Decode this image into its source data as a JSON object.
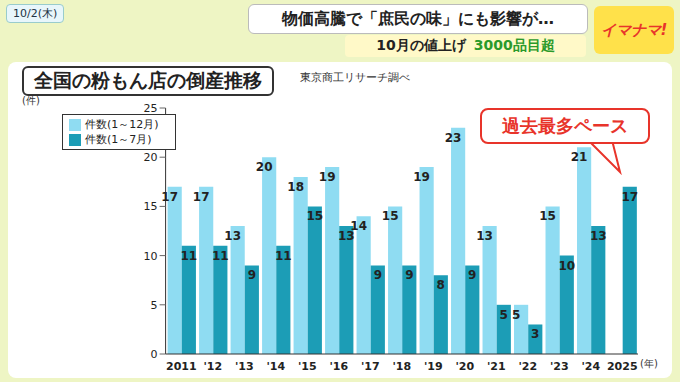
{
  "header": {
    "date": "10/2(木)",
    "headline": "物価高騰で「庶民の味」にも影響が…",
    "sub": "10月の値上げ",
    "sub_value": "3000品目超",
    "logo": "イマナマ!"
  },
  "chart_data": {
    "type": "bar",
    "title": "全国の粉もん店の倒産推移",
    "subtitle": "東京商工リサーチ調べ",
    "annotation": "過去最多ペース",
    "y_label": "(件)",
    "x_label": "(年)",
    "categories": [
      "2011",
      "'12",
      "'13",
      "'14",
      "'15",
      "'16",
      "'17",
      "'18",
      "'19",
      "'20",
      "'21",
      "'22",
      "'23",
      "'24",
      "2025"
    ],
    "series": [
      {
        "name": "件数(1～12月)",
        "color": "#8fdcf2",
        "values": [
          17,
          17,
          13,
          20,
          18,
          19,
          14,
          15,
          19,
          23,
          13,
          5,
          15,
          21,
          null
        ]
      },
      {
        "name": "件数(1～7月)",
        "color": "#1c9db6",
        "values": [
          11,
          11,
          9,
          11,
          15,
          13,
          9,
          9,
          8,
          9,
          5,
          3,
          10,
          13,
          17
        ]
      }
    ],
    "ylim": [
      0,
      25
    ],
    "yticks": [
      0,
      5,
      10,
      15,
      20,
      25
    ],
    "grid": false,
    "legend": "upper left",
    "data_labels": true
  }
}
